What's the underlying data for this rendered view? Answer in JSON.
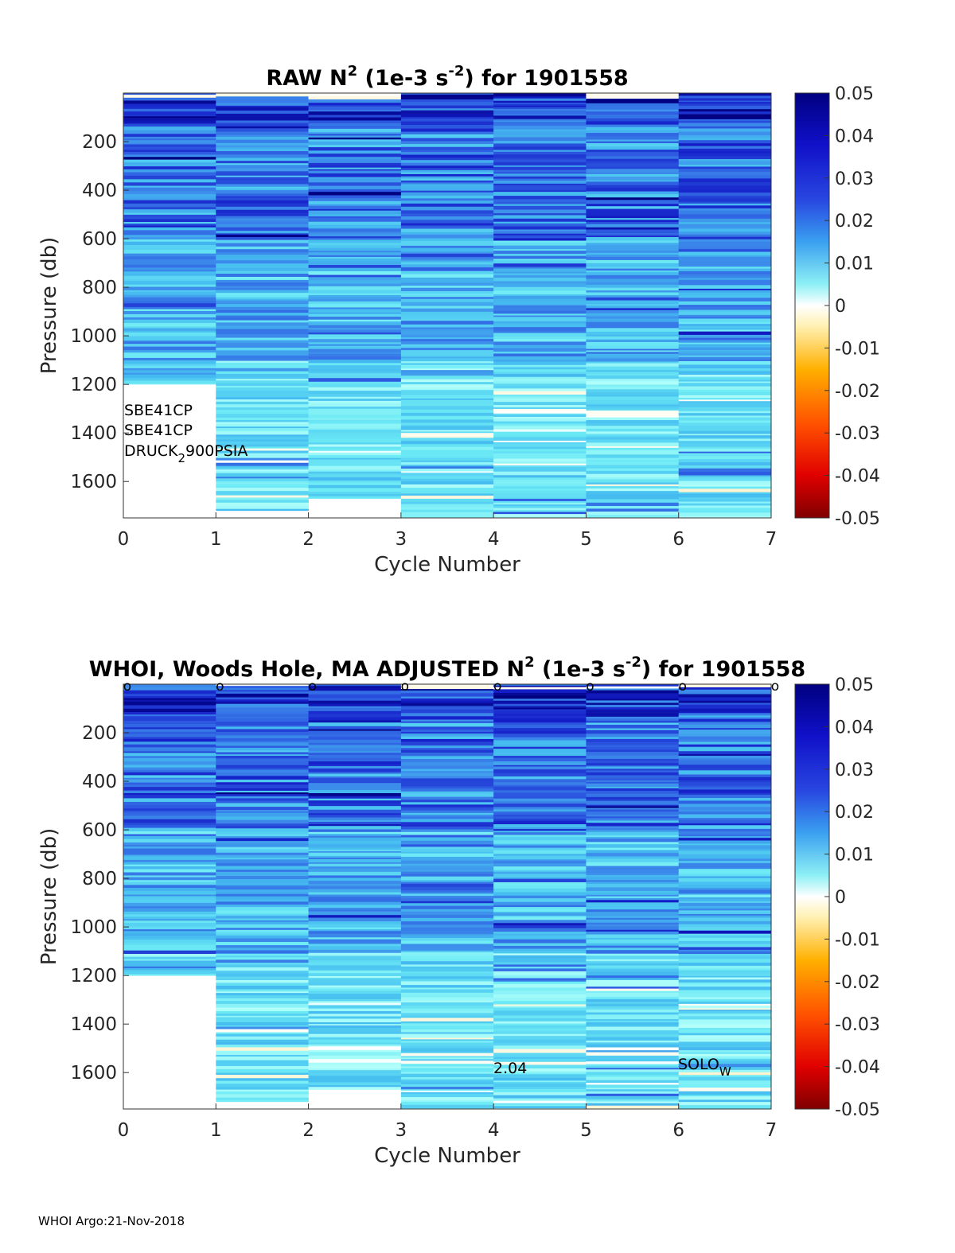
{
  "footer": "WHOI Argo:21-Nov-2018",
  "chart_data": [
    {
      "type": "heatmap",
      "title": {
        "prefix": "RAW N",
        "sup1": "2",
        "mid": " (1e-3 s",
        "sup2": "-2",
        "suffix": ") for 1901558"
      },
      "xlabel": "Cycle Number",
      "ylabel": "Pressure (db)",
      "xlim": [
        0,
        7
      ],
      "ylim": [
        1750,
        0
      ],
      "xticks": [
        "0",
        "1",
        "2",
        "3",
        "4",
        "5",
        "6",
        "7"
      ],
      "yticks": [
        200,
        400,
        600,
        800,
        1000,
        1200,
        1400,
        1600
      ],
      "profile_max_pressure": [
        1200,
        1720,
        1670,
        1750,
        1750,
        1750,
        1750
      ],
      "colorbar": {
        "ticks": [
          "0.05",
          "0.04",
          "0.03",
          "0.02",
          "0.01",
          "0",
          "-0.01",
          "-0.02",
          "-0.03",
          "-0.04",
          "-0.05"
        ],
        "range": [
          -0.05,
          0.05
        ]
      },
      "annotations": [
        {
          "text": "SBE41CP"
        },
        {
          "text": "SBE41CP"
        },
        {
          "text": "DRUCK",
          "sub": "2",
          "after": "900PSIA"
        }
      ],
      "surface_markers": false
    },
    {
      "type": "heatmap",
      "title": {
        "prefix": "WHOI, Woods Hole, MA  ADJUSTED N",
        "sup1": "2",
        "mid": " (1e-3 s",
        "sup2": "-2",
        "suffix": ") for 1901558"
      },
      "xlabel": "Cycle Number",
      "ylabel": "Pressure (db)",
      "xlim": [
        0,
        7
      ],
      "ylim": [
        1750,
        0
      ],
      "xticks": [
        "0",
        "1",
        "2",
        "3",
        "4",
        "5",
        "6",
        "7"
      ],
      "yticks": [
        200,
        400,
        600,
        800,
        1000,
        1200,
        1400,
        1600
      ],
      "profile_max_pressure": [
        1200,
        1720,
        1670,
        1750,
        1750,
        1750,
        1750
      ],
      "colorbar": {
        "ticks": [
          "0.05",
          "0.04",
          "0.03",
          "0.02",
          "0.01",
          "0",
          "-0.01",
          "-0.02",
          "-0.03",
          "-0.04",
          "-0.05"
        ],
        "range": [
          -0.05,
          0.05
        ]
      },
      "annotations": [
        {
          "text": "2.04"
        },
        {
          "text": "SOLO",
          "sub": "W"
        }
      ],
      "surface_markers": true,
      "marker_glyph": "o"
    }
  ]
}
